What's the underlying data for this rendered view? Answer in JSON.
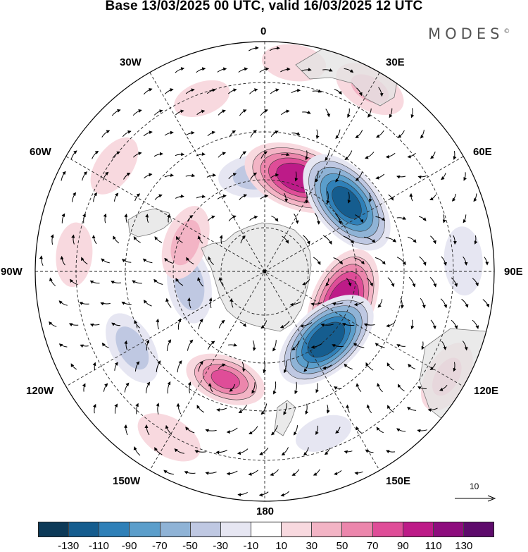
{
  "title": "Base 13/03/2025 00 UTC, valid 16/03/2025 12 UTC",
  "logo": "MODES",
  "logo_mark": "©",
  "longitude_labels": [
    "0",
    "30E",
    "60E",
    "90E",
    "120E",
    "150E",
    "180",
    "150W",
    "120W",
    "90W",
    "60W",
    "30W"
  ],
  "wind_scale": {
    "value": "10",
    "icon": "arrow-right-icon"
  },
  "colorbar": {
    "colors": [
      "#0d3a58",
      "#155d8f",
      "#2f80b8",
      "#5b9ecb",
      "#8fb3d6",
      "#bfc8e2",
      "#e6e6f2",
      "#ffffff",
      "#f8d9df",
      "#f3b4c5",
      "#ec86ac",
      "#df4d98",
      "#bd1b88",
      "#8e0d7e",
      "#5e0b6c"
    ],
    "tick_labels": [
      "-130",
      "-110",
      "-90",
      "-70",
      "-50",
      "-30",
      "-10",
      "10",
      "30",
      "50",
      "70",
      "90",
      "110",
      "130"
    ]
  },
  "anomaly_centers": [
    {
      "lon": -5,
      "colat": 25,
      "value": -45
    },
    {
      "lon": 20,
      "colat": 26,
      "value": 105
    },
    {
      "lon": 50,
      "colat": 28,
      "value": -115
    },
    {
      "lon": 112,
      "colat": 22,
      "value": 110
    },
    {
      "lon": 138,
      "colat": 24,
      "value": -125
    },
    {
      "lon": -160,
      "colat": 30,
      "value": 75
    },
    {
      "lon": -120,
      "colat": 40,
      "value": -45
    },
    {
      "lon": -100,
      "colat": 20,
      "value": -50
    },
    {
      "lon": -70,
      "colat": 22,
      "value": 45
    },
    {
      "lon": 8,
      "colat": 55,
      "value": 25
    },
    {
      "lon": 30,
      "colat": 55,
      "value": 40
    },
    {
      "lon": -20,
      "colat": 48,
      "value": 20
    },
    {
      "lon": 87,
      "colat": 52,
      "value": -30
    },
    {
      "lon": 120,
      "colat": 55,
      "value": 40
    },
    {
      "lon": -85,
      "colat": 50,
      "value": 25
    },
    {
      "lon": -55,
      "colat": 48,
      "value": 25
    },
    {
      "lon": -150,
      "colat": 50,
      "value": 30
    },
    {
      "lon": 160,
      "colat": 45,
      "value": -20
    }
  ]
}
